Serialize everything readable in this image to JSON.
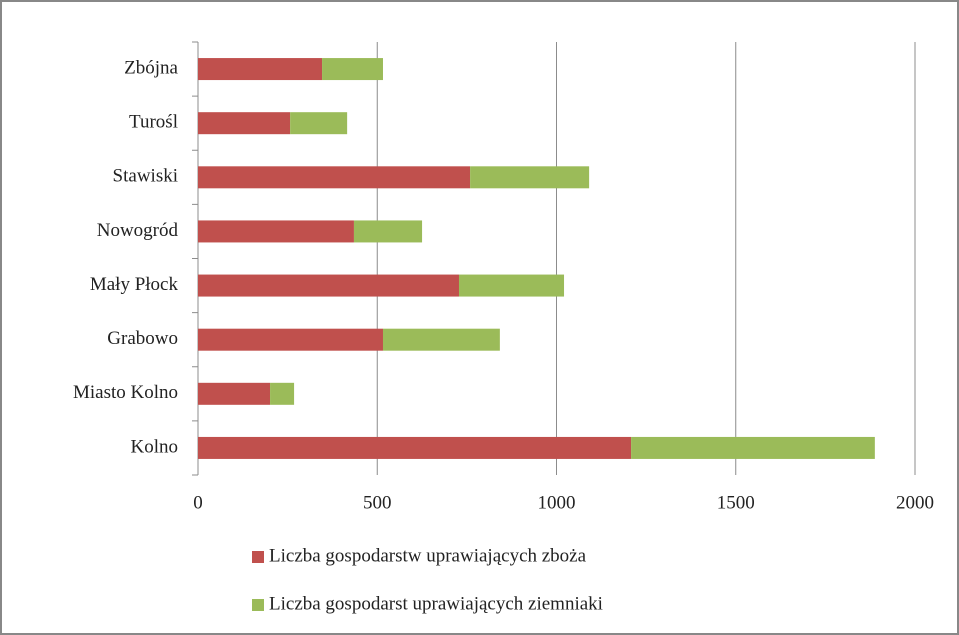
{
  "chart_data": {
    "type": "bar",
    "orientation": "horizontal",
    "stacked": true,
    "categories": [
      "Kolno",
      "Miasto Kolno",
      "Grabowo",
      "Mały Płock",
      "Nowogród",
      "Stawiski",
      "Turośl",
      "Zbójna"
    ],
    "series": [
      {
        "name": "Liczba gospodarstw uprawiających zboża",
        "color": "#c0504d",
        "values": [
          1208,
          201,
          516,
          728,
          435,
          759,
          257,
          346
        ]
      },
      {
        "name": "Liczba gospodarst uprawiających ziemniaki",
        "color": "#9bbb59",
        "values": [
          680,
          67,
          326,
          293,
          190,
          332,
          159,
          170
        ]
      }
    ],
    "xlim": [
      0,
      2000
    ],
    "xticks": [
      0,
      500,
      1000,
      1500,
      2000
    ],
    "grid": true,
    "legend": "bottom"
  }
}
